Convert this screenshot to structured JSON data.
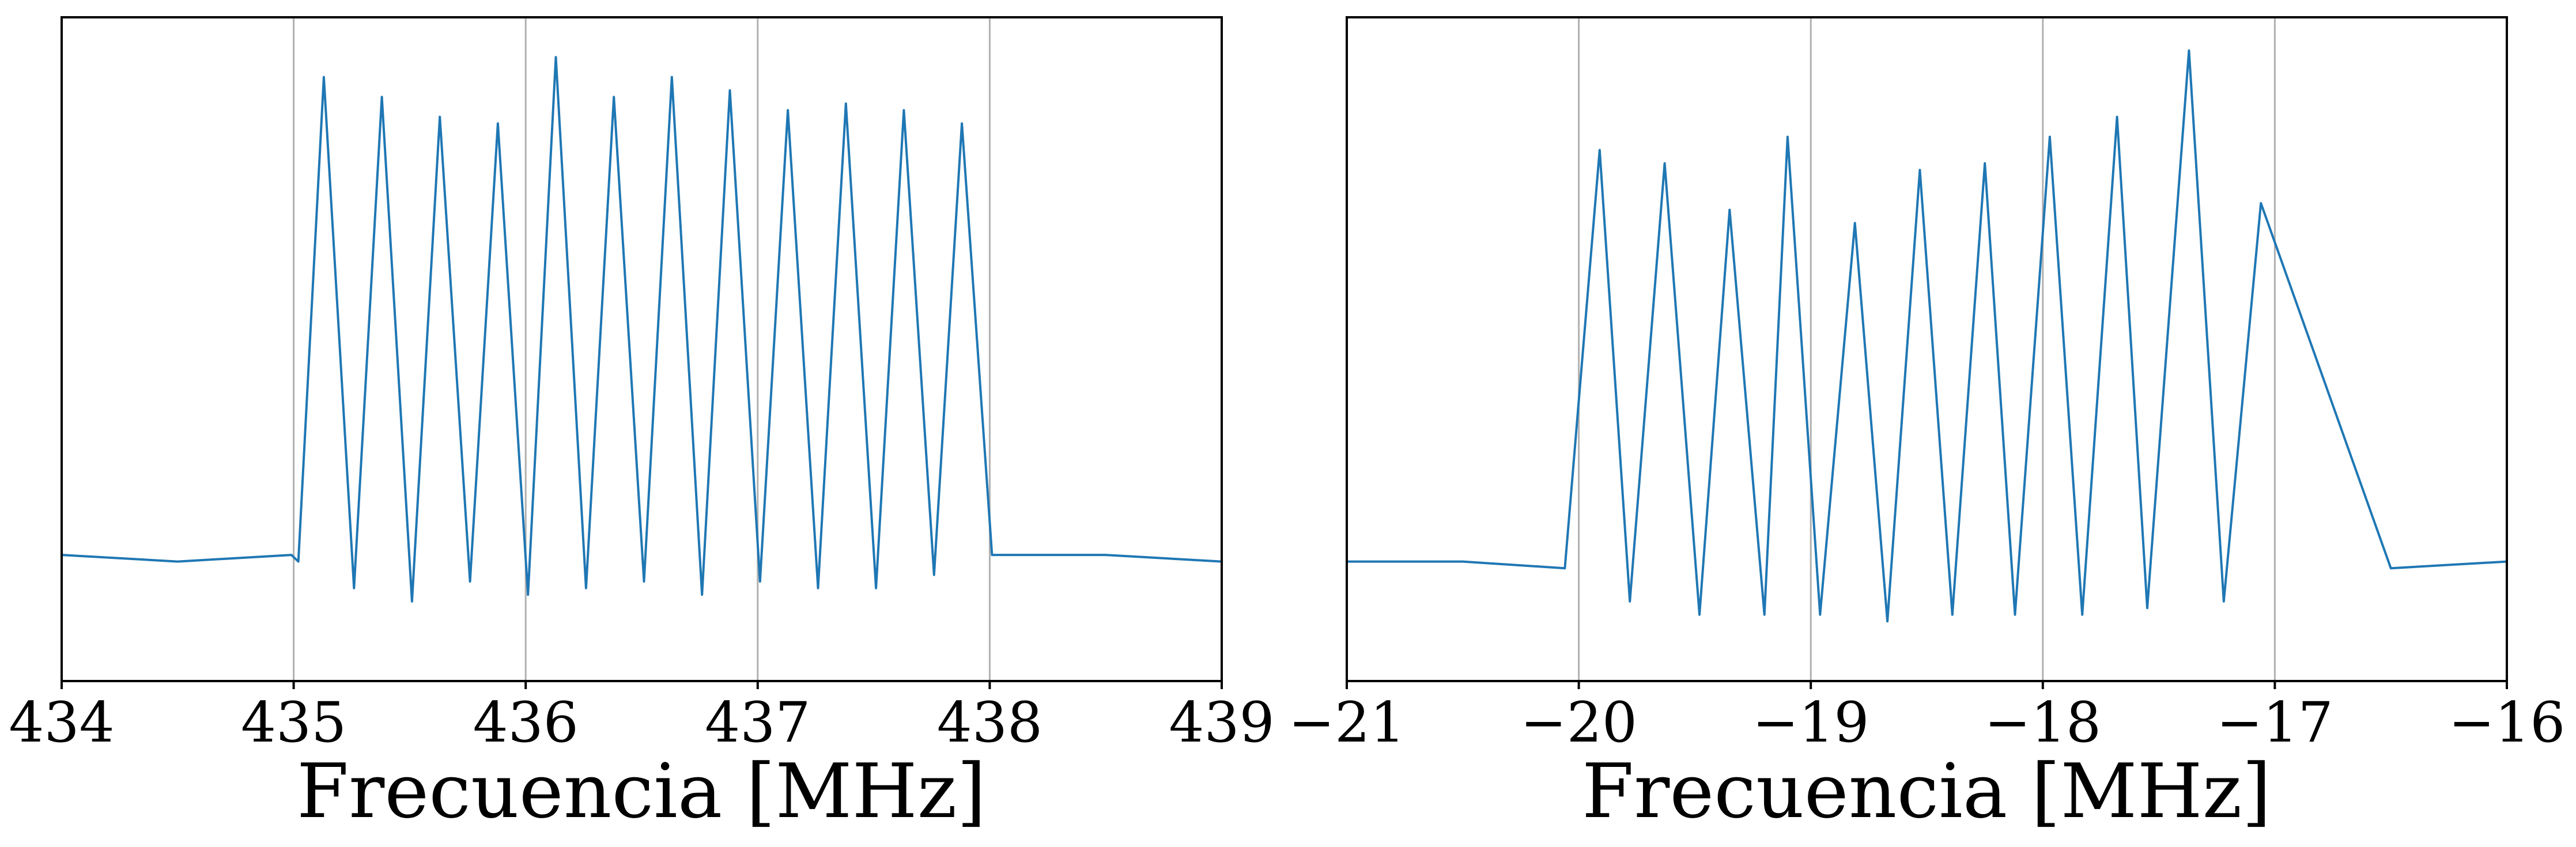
{
  "chart_data": [
    {
      "type": "line",
      "title": "",
      "xlabel": "Frecuencia [MHz]",
      "ylabel": "",
      "xlim": [
        434,
        439
      ],
      "ylim": [
        0,
        1
      ],
      "grid": "vertical",
      "xticks": [
        434,
        435,
        436,
        437,
        438,
        439
      ],
      "xtick_labels": [
        "434",
        "435",
        "436",
        "437",
        "438",
        "439"
      ],
      "series": [
        {
          "color": "#1f77b4",
          "x": [
            434.0,
            434.5,
            434.99,
            435.02,
            435.13,
            435.26,
            435.38,
            435.51,
            435.63,
            435.76,
            435.88,
            436.01,
            436.13,
            436.26,
            436.38,
            436.51,
            436.63,
            436.76,
            436.88,
            437.01,
            437.13,
            437.26,
            437.38,
            437.51,
            437.63,
            437.76,
            437.88,
            438.01,
            438.5,
            439.0
          ],
          "y": [
            0.19,
            0.18,
            0.19,
            0.18,
            0.91,
            0.14,
            0.88,
            0.12,
            0.85,
            0.15,
            0.84,
            0.13,
            0.94,
            0.14,
            0.88,
            0.15,
            0.91,
            0.13,
            0.89,
            0.15,
            0.86,
            0.14,
            0.87,
            0.14,
            0.86,
            0.16,
            0.84,
            0.19,
            0.19,
            0.18
          ]
        }
      ]
    },
    {
      "type": "line",
      "title": "",
      "xlabel": "Frecuencia [MHz]",
      "ylabel": "",
      "xlim": [
        -21,
        -16
      ],
      "ylim": [
        0,
        1
      ],
      "grid": "vertical",
      "xticks": [
        -21,
        -20,
        -19,
        -18,
        -17,
        -16
      ],
      "xtick_labels": [
        "−21",
        "−20",
        "−19",
        "−18",
        "−17",
        "−16"
      ],
      "series": [
        {
          "color": "#1f77b4",
          "x": [
            -21.0,
            -20.5,
            -20.06,
            -19.91,
            -19.78,
            -19.63,
            -19.48,
            -19.35,
            -19.2,
            -19.1,
            -18.96,
            -18.81,
            -18.67,
            -18.53,
            -18.39,
            -18.25,
            -18.12,
            -17.97,
            -17.83,
            -17.68,
            -17.55,
            -17.37,
            -17.22,
            -17.06,
            -16.5,
            -16.0
          ],
          "y": [
            0.18,
            0.18,
            0.17,
            0.8,
            0.12,
            0.78,
            0.1,
            0.71,
            0.1,
            0.82,
            0.1,
            0.69,
            0.09,
            0.77,
            0.1,
            0.78,
            0.1,
            0.82,
            0.1,
            0.85,
            0.11,
            0.95,
            0.12,
            0.72,
            0.17,
            0.18
          ]
        }
      ]
    }
  ]
}
